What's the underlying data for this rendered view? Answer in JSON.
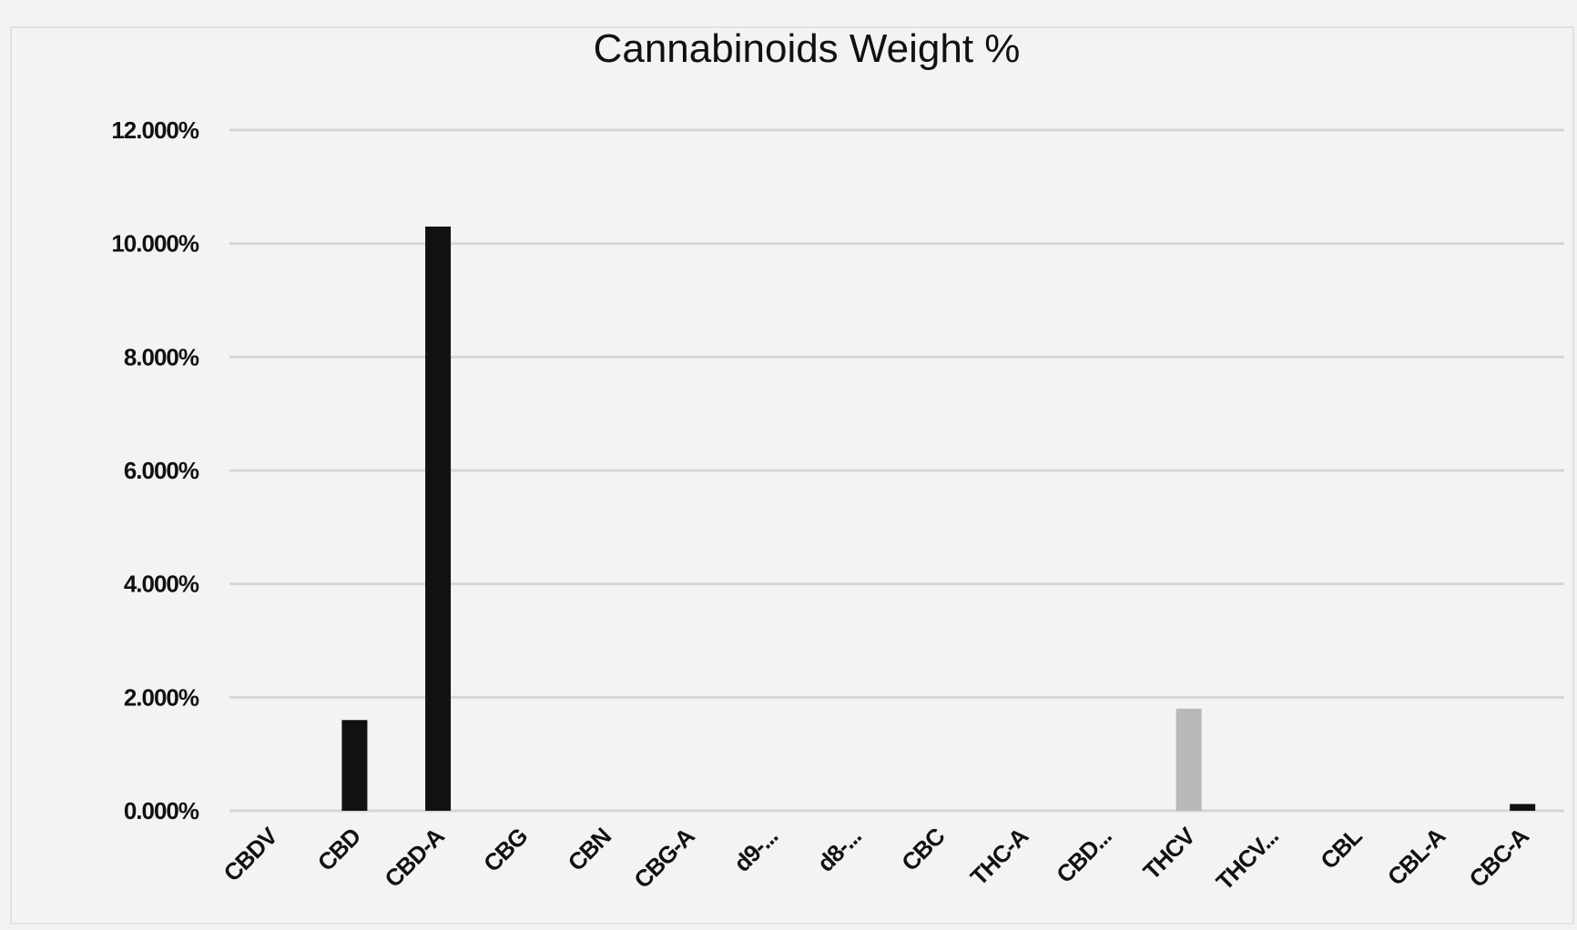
{
  "chart_data": {
    "type": "bar",
    "title": "Cannabinoids Weight %",
    "xlabel": "",
    "ylabel": "",
    "categories": [
      "CBDV",
      "CBD",
      "CBD-A",
      "CBG",
      "CBN",
      "CBG-A",
      "d9-...",
      "d8-...",
      "CBC",
      "THC-A",
      "CBD...",
      "THCV",
      "THCV...",
      "CBL",
      "CBL-A",
      "CBC-A"
    ],
    "values": [
      0,
      1.6,
      10.3,
      0,
      0,
      0,
      0,
      0,
      0,
      0,
      0,
      1.8,
      0,
      0,
      0,
      0.12
    ],
    "bar_colors": [
      "#111111",
      "#111111",
      "#111111",
      "#111111",
      "#111111",
      "#111111",
      "#111111",
      "#111111",
      "#111111",
      "#111111",
      "#111111",
      "#b8b8b8",
      "#111111",
      "#111111",
      "#111111",
      "#111111"
    ],
    "ylim": [
      0,
      12
    ],
    "yticks": [
      "0.000%",
      "2.000%",
      "4.000%",
      "6.000%",
      "8.000%",
      "10.000%",
      "12.000%"
    ],
    "grid": true,
    "legend": "none"
  }
}
